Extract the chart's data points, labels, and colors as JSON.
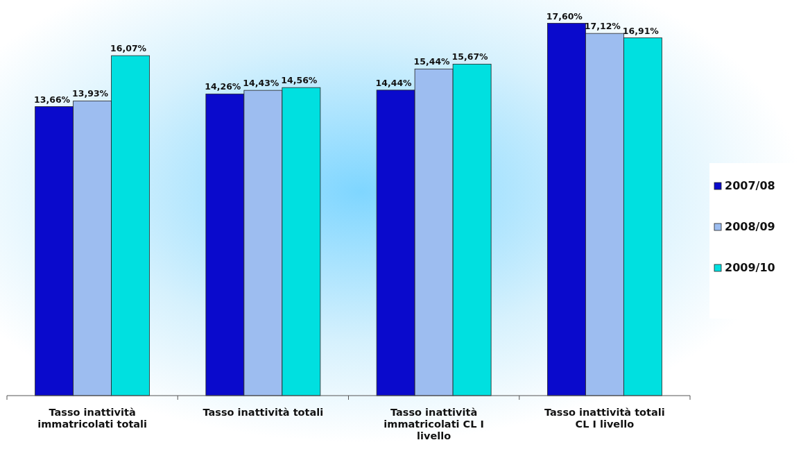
{
  "chart_data": {
    "type": "bar",
    "categories": [
      "Tasso inattività immatricolati totali",
      "Tasso inattività totali",
      "Tasso inattività immatricolati CL I livello",
      "Tasso inattività totali CL I livello"
    ],
    "series": [
      {
        "name": "2007/08",
        "color": "#0a0acc",
        "values": [
          13.66,
          14.26,
          14.44,
          17.6
        ],
        "value_labels": [
          "13,66%",
          "14,26%",
          "14,44%",
          "17,60%"
        ]
      },
      {
        "name": "2008/09",
        "color": "#9dbdf0",
        "values": [
          13.93,
          14.43,
          15.44,
          17.12
        ],
        "value_labels": [
          "13,93%",
          "14,43%",
          "15,44%",
          "17,12%"
        ]
      },
      {
        "name": "2009/10",
        "color": "#00e0e0",
        "values": [
          16.07,
          14.56,
          15.67,
          16.91
        ],
        "value_labels": [
          "16,07%",
          "14,56%",
          "15,67%",
          "16,91%"
        ]
      }
    ],
    "ylim": [
      0,
      18.7
    ],
    "tick_labels": "x",
    "legend": "right",
    "grid": false
  }
}
